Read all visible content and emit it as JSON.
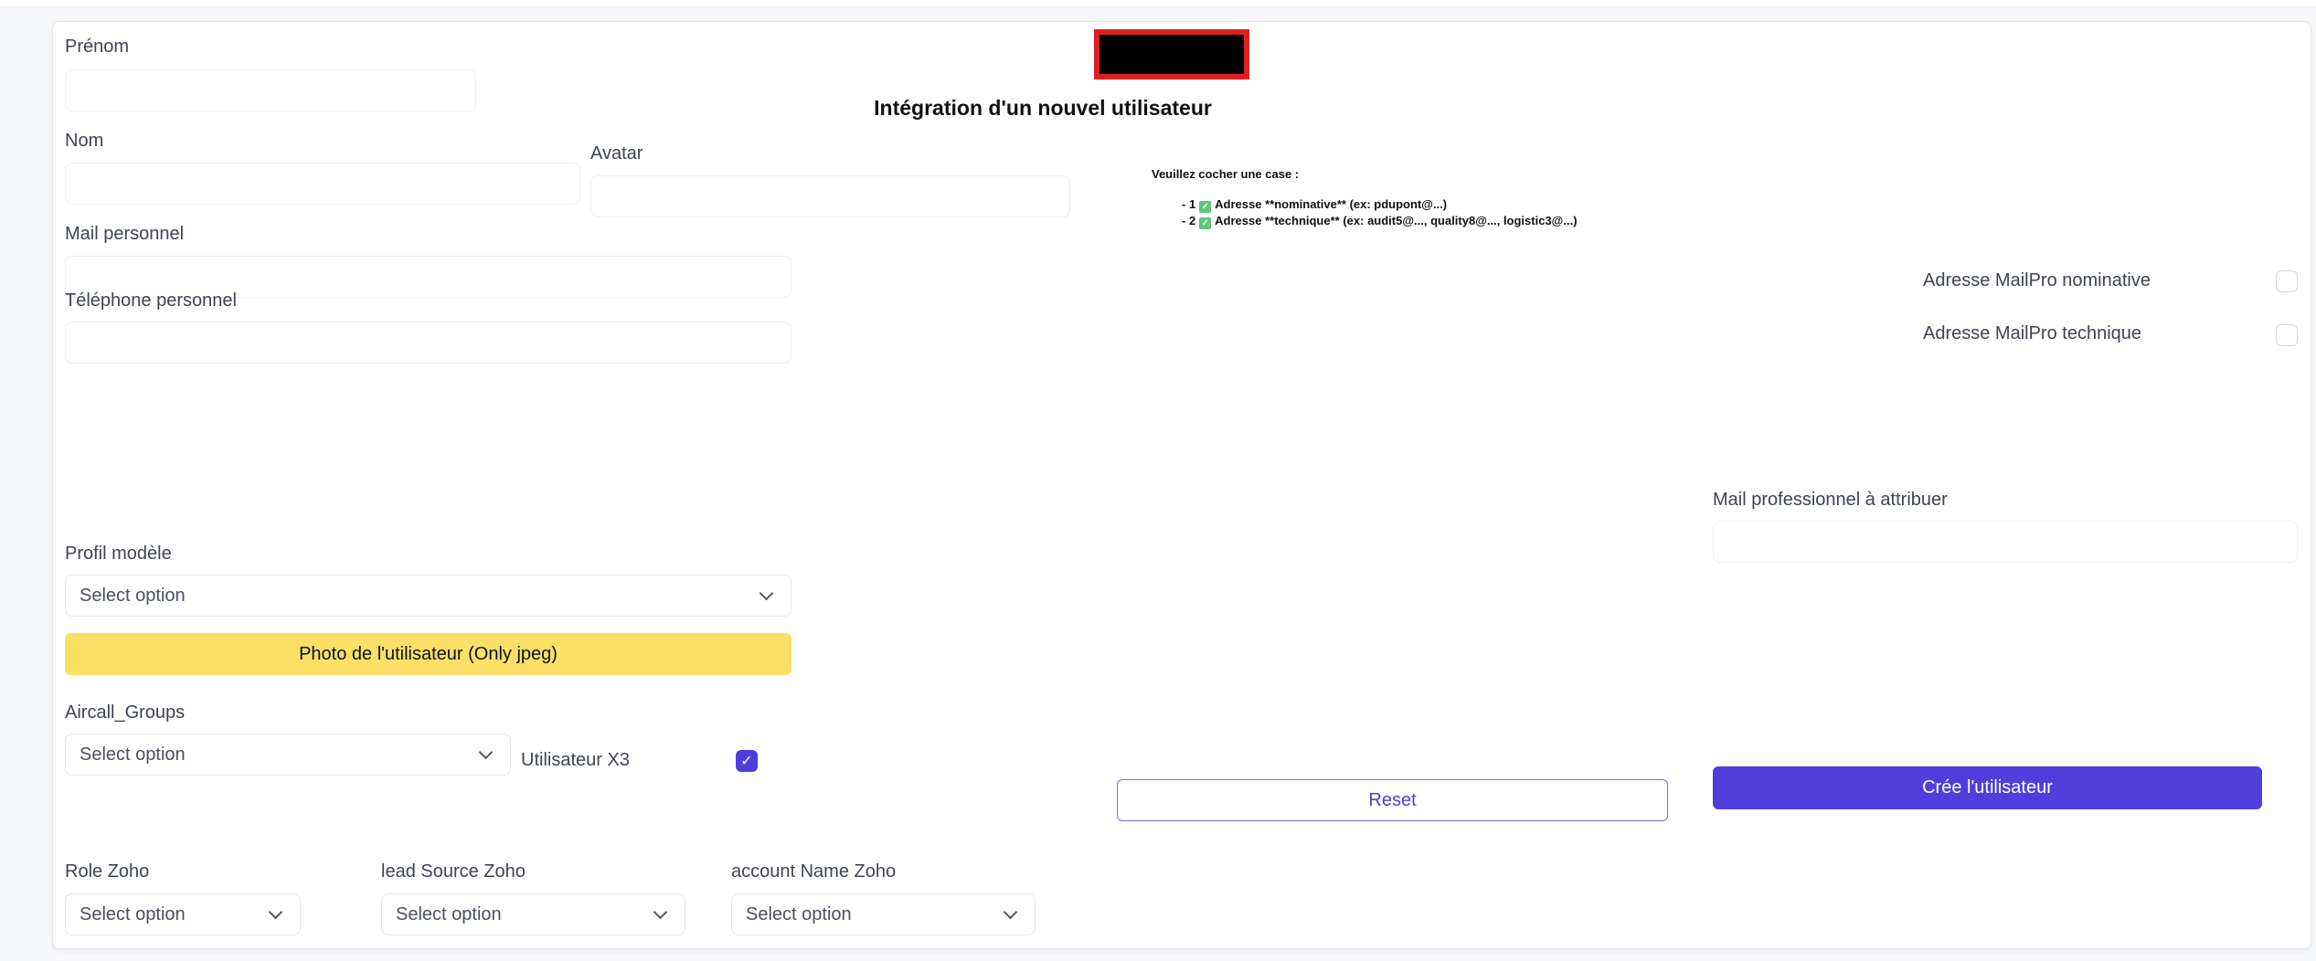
{
  "form": {
    "title": "Intégration d'un nouvel utilisateur",
    "first_name": {
      "label": "Prénom",
      "value": ""
    },
    "last_name": {
      "label": "Nom",
      "value": ""
    },
    "avatar": {
      "label": "Avatar",
      "value": ""
    },
    "personal_mail": {
      "label": "Mail personnel",
      "value": ""
    },
    "personal_phone": {
      "label": "Téléphone personnel",
      "value": ""
    },
    "profile_model": {
      "label": "Profil modèle",
      "value": "Select option"
    },
    "photo_button": "Photo de l'utilisateur (Only jpeg)",
    "aircall_groups": {
      "label": "Aircall_Groups",
      "value": "Select option"
    },
    "x3_user": {
      "label": "Utilisateur X3",
      "checked": true
    },
    "role_zoho": {
      "label": "Role Zoho",
      "value": "Select option"
    },
    "lead_source_zoho": {
      "label": "lead Source Zoho",
      "value": "Select option"
    },
    "account_name_zoho": {
      "label": "account Name Zoho",
      "value": "Select option"
    }
  },
  "instructions": {
    "heading": "Veuillez cocher une case :",
    "items": [
      {
        "prefix": "- 1",
        "text": "Adresse **nominative** (ex: pdupont@...)"
      },
      {
        "prefix": "- 2",
        "text": "Adresse **technique** (ex: audit5@..., quality8@..., logistic3@...)"
      }
    ]
  },
  "mailpro": {
    "nominative": {
      "label": "Adresse MailPro nominative",
      "checked": false
    },
    "technique": {
      "label": "Adresse MailPro technique",
      "checked": false
    },
    "pro_mail": {
      "label": "Mail professionnel à attribuer",
      "value": ""
    }
  },
  "actions": {
    "reset": "Reset",
    "create": "Crée l'utilisateur"
  },
  "colors": {
    "accent": "#4f3ddc",
    "photo_button": "#fbe068",
    "redacted_border": "#e02020"
  }
}
